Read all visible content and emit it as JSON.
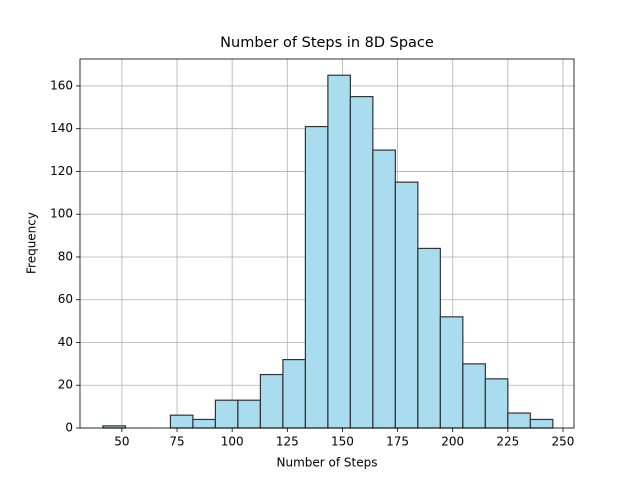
{
  "chart_data": {
    "type": "histogram",
    "title": "Number of Steps in 8D Space",
    "x_label": "Number of Steps",
    "y_label": "Frequency",
    "bins": [
      41.4,
      51.6,
      61.8,
      72.0,
      82.2,
      92.4,
      102.6,
      112.8,
      123.0,
      133.2,
      143.4,
      153.6,
      163.8,
      174.0,
      184.2,
      194.4,
      204.6,
      214.8,
      225.0,
      235.2,
      245.4
    ],
    "values": [
      1,
      0,
      0,
      6,
      4,
      13,
      13,
      25,
      32,
      141,
      165,
      155,
      130,
      115,
      84,
      52,
      30,
      23,
      7,
      4
    ],
    "color": "#a9dcee",
    "edgecolor": "#333333",
    "xlim": [
      31,
      255
    ],
    "xticks": [
      50,
      75,
      100,
      125,
      150,
      175,
      200,
      225,
      250
    ],
    "ylim": [
      0,
      172.6
    ],
    "yticks": [
      0,
      20,
      40,
      60,
      80,
      100,
      120,
      140,
      160
    ],
    "grid": true
  }
}
